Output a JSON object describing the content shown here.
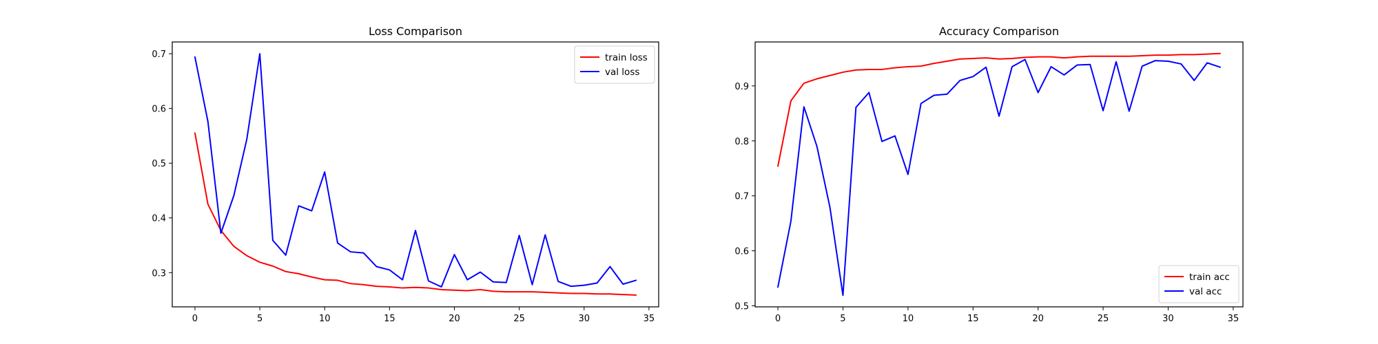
{
  "chart_data": [
    {
      "type": "line",
      "title": "Loss Comparison",
      "xlabel": "",
      "ylabel": "",
      "xlim": [
        -1.75,
        35.75
      ],
      "ylim": [
        0.2375,
        0.7215
      ],
      "xticks": [
        0,
        5,
        10,
        15,
        20,
        25,
        30,
        35
      ],
      "yticks": [
        0.3,
        0.4,
        0.5,
        0.6,
        0.7
      ],
      "ytick_labels": [
        "0.3",
        "0.4",
        "0.5",
        "0.6",
        "0.7"
      ],
      "legend_position": "upper right",
      "x": [
        0,
        1,
        2,
        3,
        4,
        5,
        6,
        7,
        8,
        9,
        10,
        11,
        12,
        13,
        14,
        15,
        16,
        17,
        18,
        19,
        20,
        21,
        22,
        23,
        24,
        25,
        26,
        27,
        28,
        29,
        30,
        31,
        32,
        33,
        34
      ],
      "series": [
        {
          "name": "train loss",
          "color": "#ff0000",
          "values": [
            0.555,
            0.425,
            0.377,
            0.348,
            0.331,
            0.319,
            0.312,
            0.302,
            0.298,
            0.292,
            0.287,
            0.286,
            0.28,
            0.278,
            0.275,
            0.274,
            0.272,
            0.273,
            0.272,
            0.269,
            0.268,
            0.267,
            0.269,
            0.266,
            0.265,
            0.265,
            0.265,
            0.264,
            0.263,
            0.262,
            0.262,
            0.261,
            0.261,
            0.26,
            0.259
          ]
        },
        {
          "name": "val loss",
          "color": "#0000ff",
          "values": [
            0.694,
            0.576,
            0.372,
            0.441,
            0.544,
            0.7,
            0.359,
            0.332,
            0.422,
            0.413,
            0.484,
            0.354,
            0.338,
            0.336,
            0.311,
            0.305,
            0.287,
            0.377,
            0.285,
            0.274,
            0.333,
            0.287,
            0.301,
            0.283,
            0.282,
            0.368,
            0.278,
            0.369,
            0.284,
            0.275,
            0.277,
            0.281,
            0.311,
            0.279,
            0.286
          ]
        }
      ]
    },
    {
      "type": "line",
      "title": "Accuracy Comparison",
      "xlabel": "",
      "ylabel": "",
      "xlim": [
        -1.75,
        35.75
      ],
      "ylim": [
        0.498,
        0.98
      ],
      "xticks": [
        0,
        5,
        10,
        15,
        20,
        25,
        30,
        35
      ],
      "yticks": [
        0.5,
        0.6,
        0.7,
        0.8,
        0.9
      ],
      "ytick_labels": [
        "0.5",
        "0.6",
        "0.7",
        "0.8",
        "0.9"
      ],
      "legend_position": "lower right",
      "x": [
        0,
        1,
        2,
        3,
        4,
        5,
        6,
        7,
        8,
        9,
        10,
        11,
        12,
        13,
        14,
        15,
        16,
        17,
        18,
        19,
        20,
        21,
        22,
        23,
        24,
        25,
        26,
        27,
        28,
        29,
        30,
        31,
        32,
        33,
        34
      ],
      "series": [
        {
          "name": "train acc",
          "color": "#ff0000",
          "values": [
            0.754,
            0.873,
            0.905,
            0.913,
            0.919,
            0.925,
            0.929,
            0.93,
            0.93,
            0.933,
            0.935,
            0.936,
            0.941,
            0.945,
            0.949,
            0.95,
            0.951,
            0.949,
            0.95,
            0.952,
            0.953,
            0.953,
            0.951,
            0.953,
            0.954,
            0.954,
            0.954,
            0.954,
            0.955,
            0.956,
            0.956,
            0.957,
            0.957,
            0.958,
            0.959
          ]
        },
        {
          "name": "val acc",
          "color": "#0000ff",
          "values": [
            0.534,
            0.654,
            0.862,
            0.79,
            0.679,
            0.519,
            0.861,
            0.888,
            0.799,
            0.809,
            0.739,
            0.868,
            0.883,
            0.885,
            0.91,
            0.917,
            0.934,
            0.845,
            0.935,
            0.948,
            0.888,
            0.935,
            0.92,
            0.938,
            0.939,
            0.855,
            0.944,
            0.854,
            0.936,
            0.946,
            0.945,
            0.94,
            0.91,
            0.942,
            0.934
          ]
        }
      ]
    }
  ]
}
